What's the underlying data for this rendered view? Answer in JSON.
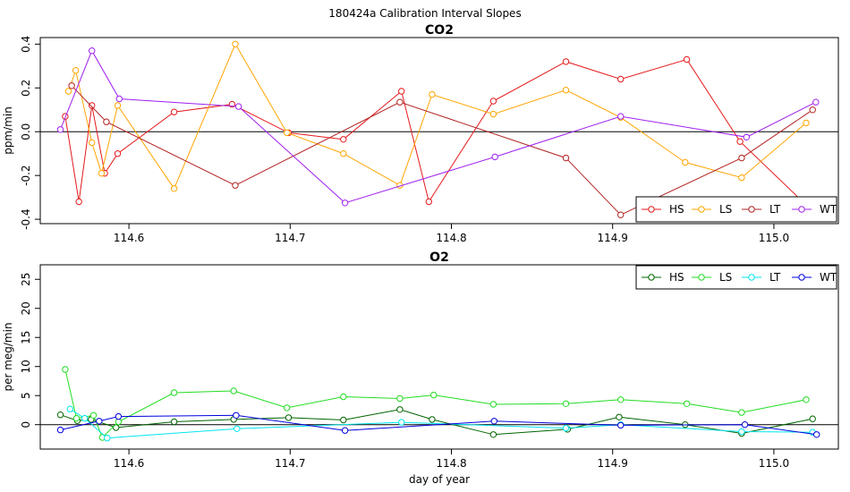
{
  "page_title": "180424a   Calibration Interval Slopes",
  "chart_data": [
    {
      "type": "line",
      "title": "CO2",
      "xlabel": "",
      "ylabel": "ppm/min",
      "xlim": [
        114.545,
        115.04
      ],
      "ylim": [
        -0.42,
        0.43
      ],
      "xticks": [
        "114.6",
        "114.7",
        "114.8",
        "114.9",
        "115.0"
      ],
      "xtick_values": [
        114.6,
        114.7,
        114.8,
        114.9,
        115.0
      ],
      "yticks": [
        "-0.4",
        "-0.2",
        "0.0",
        "0.2",
        "0.4"
      ],
      "ytick_values": [
        -0.4,
        -0.2,
        0.0,
        0.2,
        0.4
      ],
      "hline": 0,
      "legend_position": "bottom-right",
      "series": [
        {
          "name": "HS",
          "color": "#e41a1c",
          "x": [
            114.5605,
            114.569,
            114.577,
            114.585,
            114.593,
            114.628,
            114.664,
            114.699,
            114.733,
            114.769,
            114.786,
            114.826,
            114.871,
            114.905,
            114.946,
            114.979,
            115.025
          ],
          "y": [
            0.07,
            -0.32,
            0.12,
            -0.19,
            -0.1,
            0.09,
            0.125,
            -0.005,
            -0.035,
            0.185,
            -0.32,
            0.14,
            0.32,
            0.24,
            0.33,
            -0.045,
            -0.37
          ]
        },
        {
          "name": "LS",
          "color": "#ffa500",
          "x": [
            114.5625,
            114.567,
            114.577,
            114.583,
            114.593,
            114.628,
            114.666,
            114.698,
            114.733,
            114.768,
            114.788,
            114.826,
            114.871,
            114.905,
            114.945,
            114.98,
            115.02
          ],
          "y": [
            0.185,
            0.28,
            -0.05,
            -0.19,
            0.12,
            -0.26,
            0.4,
            -0.005,
            -0.1,
            -0.245,
            0.17,
            0.08,
            0.19,
            0.065,
            -0.14,
            -0.21,
            0.04
          ]
        },
        {
          "name": "LT",
          "color": "#b22222",
          "x": [
            114.5645,
            114.586,
            114.666,
            114.768,
            114.871,
            114.905,
            114.98,
            115.024
          ],
          "y": [
            0.21,
            0.045,
            -0.245,
            0.135,
            -0.12,
            -0.38,
            -0.12,
            0.1
          ]
        },
        {
          "name": "WT",
          "color": "#a020f0",
          "x": [
            114.5575,
            114.577,
            114.594,
            114.668,
            114.734,
            114.827,
            114.905,
            114.983,
            115.026
          ],
          "y": [
            0.01,
            0.37,
            0.15,
            0.115,
            -0.325,
            -0.115,
            0.07,
            -0.025,
            0.135
          ]
        }
      ]
    },
    {
      "type": "line",
      "title": "O2",
      "xlabel": "day of year",
      "ylabel": "per meg/min",
      "xlim": [
        114.545,
        115.04
      ],
      "ylim": [
        -4.2,
        27.5
      ],
      "xticks": [
        "114.6",
        "114.7",
        "114.8",
        "114.9",
        "115.0"
      ],
      "xtick_values": [
        114.6,
        114.7,
        114.8,
        114.9,
        115.0
      ],
      "yticks": [
        "0",
        "5",
        "10",
        "15",
        "20",
        "25"
      ],
      "ytick_values": [
        0,
        5,
        10,
        15,
        20,
        25
      ],
      "hline": 0,
      "legend_position": "top-right",
      "series": [
        {
          "name": "HS",
          "color": "#006400",
          "x": [
            114.5575,
            114.568,
            114.5765,
            114.592,
            114.628,
            114.665,
            114.699,
            114.733,
            114.768,
            114.788,
            114.826,
            114.872,
            114.904,
            114.945,
            114.98,
            115.024
          ],
          "y": [
            1.7,
            0.7,
            0.9,
            -0.5,
            0.5,
            0.9,
            1.2,
            0.8,
            2.6,
            0.9,
            -1.7,
            -0.8,
            1.3,
            0.0,
            -1.5,
            1.0
          ]
        },
        {
          "name": "LS",
          "color": "#22dd22",
          "x": [
            114.5605,
            114.5675,
            114.578,
            114.5835,
            114.5935,
            114.628,
            114.665,
            114.698,
            114.733,
            114.768,
            114.789,
            114.826,
            114.871,
            114.905,
            114.946,
            114.98,
            115.02
          ],
          "y": [
            9.5,
            1.1,
            1.6,
            -2.2,
            0.5,
            5.5,
            5.8,
            2.9,
            4.8,
            4.5,
            5.1,
            3.5,
            3.6,
            4.3,
            3.6,
            2.1,
            4.3
          ]
        },
        {
          "name": "LT",
          "color": "#00e5ee",
          "x": [
            114.5635,
            114.5725,
            114.5865,
            114.667,
            114.769,
            114.871,
            114.905,
            114.98,
            115.024
          ],
          "y": [
            2.7,
            1.1,
            -2.3,
            -0.7,
            0.4,
            -0.6,
            0.0,
            -1.2,
            -1.3
          ]
        },
        {
          "name": "WT",
          "color": "#0000dd",
          "x": [
            114.5575,
            114.5815,
            114.5935,
            114.6665,
            114.734,
            114.8265,
            114.905,
            114.982,
            115.0265
          ],
          "y": [
            -0.9,
            0.6,
            1.4,
            1.6,
            -1.0,
            0.6,
            -0.1,
            0.0,
            -1.7
          ]
        }
      ]
    }
  ]
}
